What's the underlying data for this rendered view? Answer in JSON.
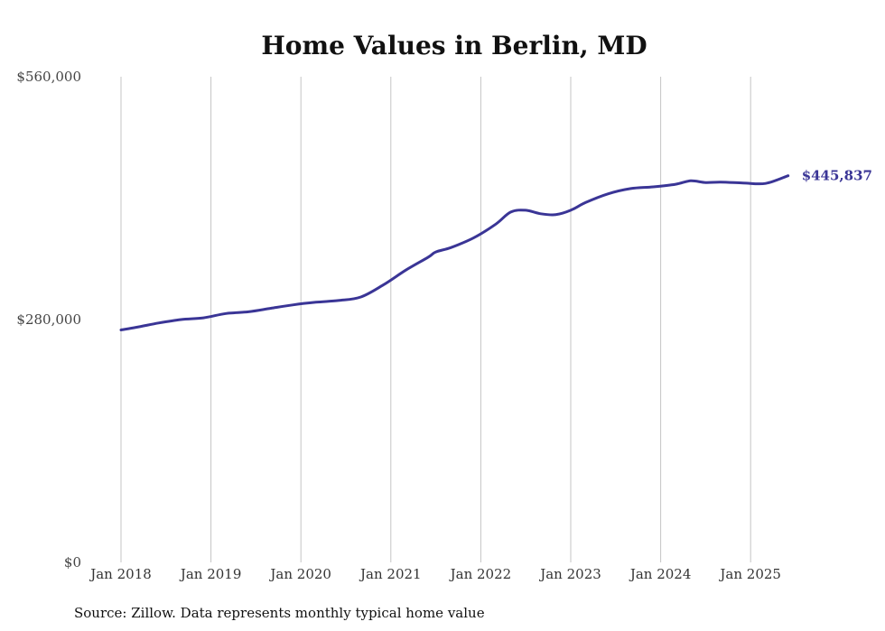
{
  "chart_data": {
    "type": "line",
    "title": "Home Values in Berlin, MD",
    "source": "Source: Zillow. Data represents monthly typical home value",
    "ylim": [
      0,
      560000
    ],
    "yticks": [
      {
        "value": 0,
        "label": "$0"
      },
      {
        "value": 280000,
        "label": "$280,000"
      },
      {
        "value": 560000,
        "label": "$560,000"
      }
    ],
    "xticks": [
      {
        "value": "2018-01",
        "label": "Jan 2018"
      },
      {
        "value": "2019-01",
        "label": "Jan 2019"
      },
      {
        "value": "2020-01",
        "label": "Jan 2020"
      },
      {
        "value": "2021-01",
        "label": "Jan 2021"
      },
      {
        "value": "2022-01",
        "label": "Jan 2022"
      },
      {
        "value": "2023-01",
        "label": "Jan 2023"
      },
      {
        "value": "2024-01",
        "label": "Jan 2024"
      },
      {
        "value": "2025-01",
        "label": "Jan 2025"
      }
    ],
    "grid": "vertical",
    "color": "#3a3596",
    "end_label": "$445,837",
    "series": [
      {
        "x": [
          "2018-01",
          "2018-03",
          "2018-06",
          "2018-09",
          "2018-12",
          "2019-03",
          "2019-06",
          "2019-09",
          "2019-12",
          "2020-03",
          "2020-06",
          "2020-09",
          "2020-12",
          "2021-03",
          "2021-06",
          "2021-07",
          "2021-09",
          "2021-12",
          "2022-03",
          "2022-05",
          "2022-07",
          "2022-09",
          "2022-11",
          "2023-01",
          "2023-03",
          "2023-06",
          "2023-09",
          "2023-12",
          "2024-03",
          "2024-05",
          "2024-07",
          "2024-09",
          "2024-12",
          "2025-03",
          "2025-06"
        ],
        "values": [
          268000,
          271000,
          276000,
          280000,
          282000,
          287000,
          289000,
          293000,
          297000,
          300000,
          302000,
          306000,
          320000,
          337000,
          352000,
          358000,
          363000,
          374000,
          390000,
          404000,
          406000,
          402000,
          401000,
          406000,
          415000,
          425000,
          431000,
          433000,
          436000,
          440000,
          438000,
          438500,
          437500,
          437000,
          445837
        ]
      }
    ]
  }
}
